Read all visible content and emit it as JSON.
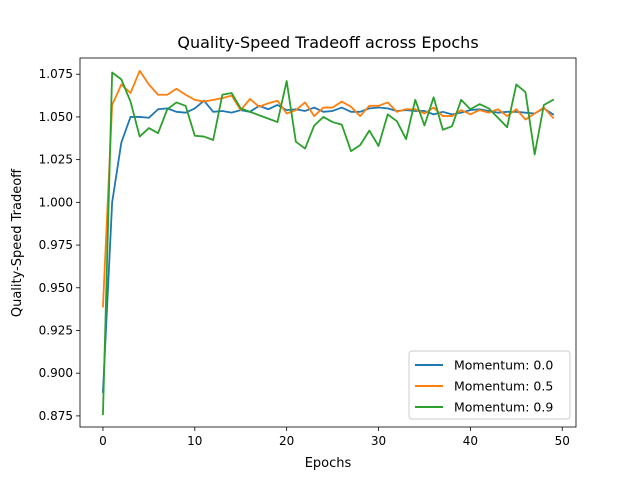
{
  "chart_data": {
    "type": "line",
    "title": "Quality-Speed Tradeoff across Epochs",
    "xlabel": "Epochs",
    "ylabel": "Quality-Speed Tradeoff",
    "xlim": [
      -2.5,
      51.5
    ],
    "ylim": [
      0.8685,
      1.0845
    ],
    "xticks": [
      0,
      10,
      20,
      30,
      40,
      50
    ],
    "xtick_labels": [
      "0",
      "10",
      "20",
      "30",
      "40",
      "50"
    ],
    "yticks": [
      0.875,
      0.9,
      0.925,
      0.95,
      0.975,
      1.0,
      1.025,
      1.05,
      1.075
    ],
    "ytick_labels": [
      "0.875",
      "0.900",
      "0.925",
      "0.950",
      "0.975",
      "1.000",
      "1.025",
      "1.050",
      "1.075"
    ],
    "grid": false,
    "legend_position": "lower-right",
    "x": [
      0,
      1,
      2,
      3,
      4,
      5,
      6,
      7,
      8,
      9,
      10,
      11,
      12,
      13,
      14,
      15,
      16,
      17,
      18,
      19,
      20,
      21,
      22,
      23,
      24,
      25,
      26,
      27,
      28,
      29,
      30,
      31,
      32,
      33,
      34,
      35,
      36,
      37,
      38,
      39,
      40,
      41,
      42,
      43,
      44,
      45,
      46,
      47,
      48,
      49
    ],
    "series": [
      {
        "name": "Momentum: 0.0",
        "color": "#1f77b4",
        "values": [
          0.889,
          1.0,
          1.035,
          1.05,
          1.05,
          1.0495,
          1.0545,
          1.055,
          1.053,
          1.0525,
          1.055,
          1.0595,
          1.053,
          1.0535,
          1.0525,
          1.054,
          1.053,
          1.0565,
          1.0545,
          1.057,
          1.054,
          1.0545,
          1.0535,
          1.0555,
          1.053,
          1.0535,
          1.0555,
          1.053,
          1.053,
          1.055,
          1.0555,
          1.055,
          1.0535,
          1.054,
          1.0535,
          1.0535,
          1.0515,
          1.053,
          1.0515,
          1.0525,
          1.054,
          1.0545,
          1.0535,
          1.0525,
          1.053,
          1.053,
          1.0525,
          1.052,
          1.055,
          1.0515
        ]
      },
      {
        "name": "Momentum: 0.5",
        "color": "#ff7f0e",
        "values": [
          0.939,
          1.057,
          1.069,
          1.064,
          1.077,
          1.069,
          1.063,
          1.063,
          1.0665,
          1.063,
          1.06,
          1.059,
          1.06,
          1.061,
          1.0625,
          1.054,
          1.0605,
          1.056,
          1.058,
          1.0595,
          1.052,
          1.054,
          1.0585,
          1.0505,
          1.0555,
          1.0555,
          1.059,
          1.056,
          1.0505,
          1.0565,
          1.0565,
          1.0585,
          1.053,
          1.0545,
          1.0545,
          1.052,
          1.0555,
          1.0505,
          1.0505,
          1.054,
          1.0515,
          1.054,
          1.0525,
          1.0545,
          1.0505,
          1.0545,
          1.0485,
          1.052,
          1.0555,
          1.0495
        ]
      },
      {
        "name": "Momentum: 0.9",
        "color": "#2ca02c",
        "values": [
          0.876,
          1.076,
          1.072,
          1.059,
          1.0385,
          1.0435,
          1.0405,
          1.0545,
          1.0585,
          1.0565,
          1.039,
          1.0385,
          1.0365,
          1.063,
          1.064,
          1.055,
          1.053,
          1.051,
          1.049,
          1.047,
          1.071,
          1.0355,
          1.0315,
          1.045,
          1.05,
          1.047,
          1.0455,
          1.03,
          1.0335,
          1.042,
          1.033,
          1.0515,
          1.0475,
          1.037,
          1.06,
          1.045,
          1.0615,
          1.0425,
          1.0445,
          1.06,
          1.0545,
          1.0575,
          1.055,
          1.0495,
          1.044,
          1.069,
          1.0645,
          1.028,
          1.057,
          1.06
        ]
      }
    ]
  }
}
